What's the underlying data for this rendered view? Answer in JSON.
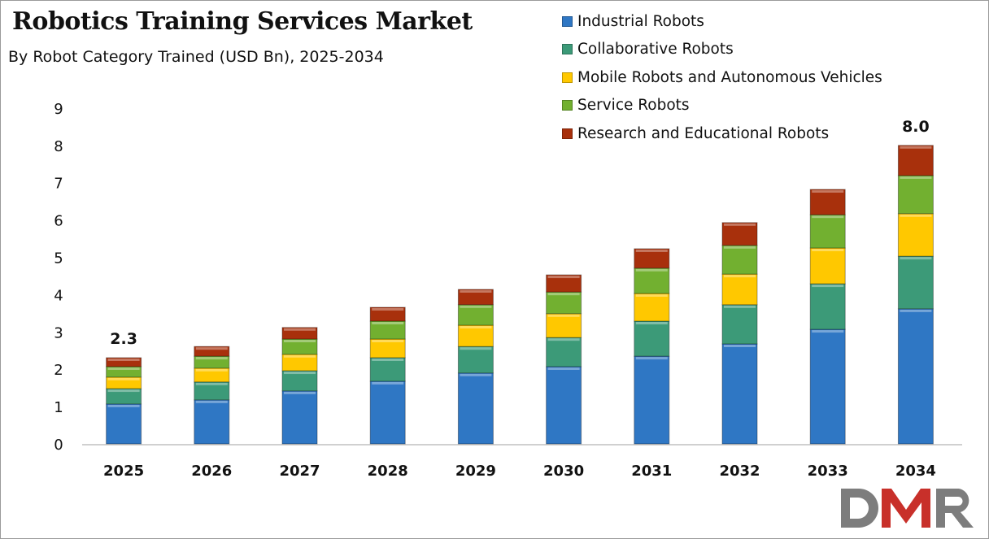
{
  "chart_data": {
    "type": "bar",
    "stacked": true,
    "title": "Robotics Training Services Market",
    "subtitle": "By Robot Category Trained (USD Bn), 2025-2034",
    "categories": [
      "2025",
      "2026",
      "2027",
      "2028",
      "2029",
      "2030",
      "2031",
      "2032",
      "2033",
      "2034"
    ],
    "series": [
      {
        "name": "Industrial Robots",
        "color": "#2F77C4",
        "values": [
          1.07,
          1.18,
          1.42,
          1.68,
          1.9,
          2.07,
          2.35,
          2.68,
          3.07,
          3.62
        ]
      },
      {
        "name": "Collaborative Robots",
        "color": "#3C9A78",
        "values": [
          0.41,
          0.48,
          0.54,
          0.63,
          0.71,
          0.78,
          0.94,
          1.05,
          1.22,
          1.41
        ]
      },
      {
        "name": "Mobile Robots and Autonomous Vehicles",
        "color": "#FFC800",
        "values": [
          0.31,
          0.37,
          0.44,
          0.5,
          0.57,
          0.64,
          0.74,
          0.82,
          0.96,
          1.14
        ]
      },
      {
        "name": "Service Robots",
        "color": "#72B030",
        "values": [
          0.28,
          0.32,
          0.41,
          0.48,
          0.55,
          0.58,
          0.68,
          0.77,
          0.89,
          1.02
        ]
      },
      {
        "name": "Research and Educational Robots",
        "color": "#A8300C",
        "values": [
          0.24,
          0.26,
          0.31,
          0.37,
          0.41,
          0.46,
          0.52,
          0.61,
          0.68,
          0.81
        ]
      }
    ],
    "data_labels": [
      {
        "category": "2025",
        "text": "2.3"
      },
      {
        "category": "2034",
        "text": "8.0"
      }
    ],
    "yticks": [
      "0",
      "1",
      "2",
      "3",
      "4",
      "5",
      "6",
      "7",
      "8",
      "9"
    ],
    "ylim": [
      0,
      9
    ],
    "xlabel": "",
    "ylabel": "",
    "grid": false,
    "legend": "top-right"
  },
  "logo": {
    "text": "DMR",
    "colors": [
      "#7a7a7a",
      "#c8302a"
    ]
  }
}
